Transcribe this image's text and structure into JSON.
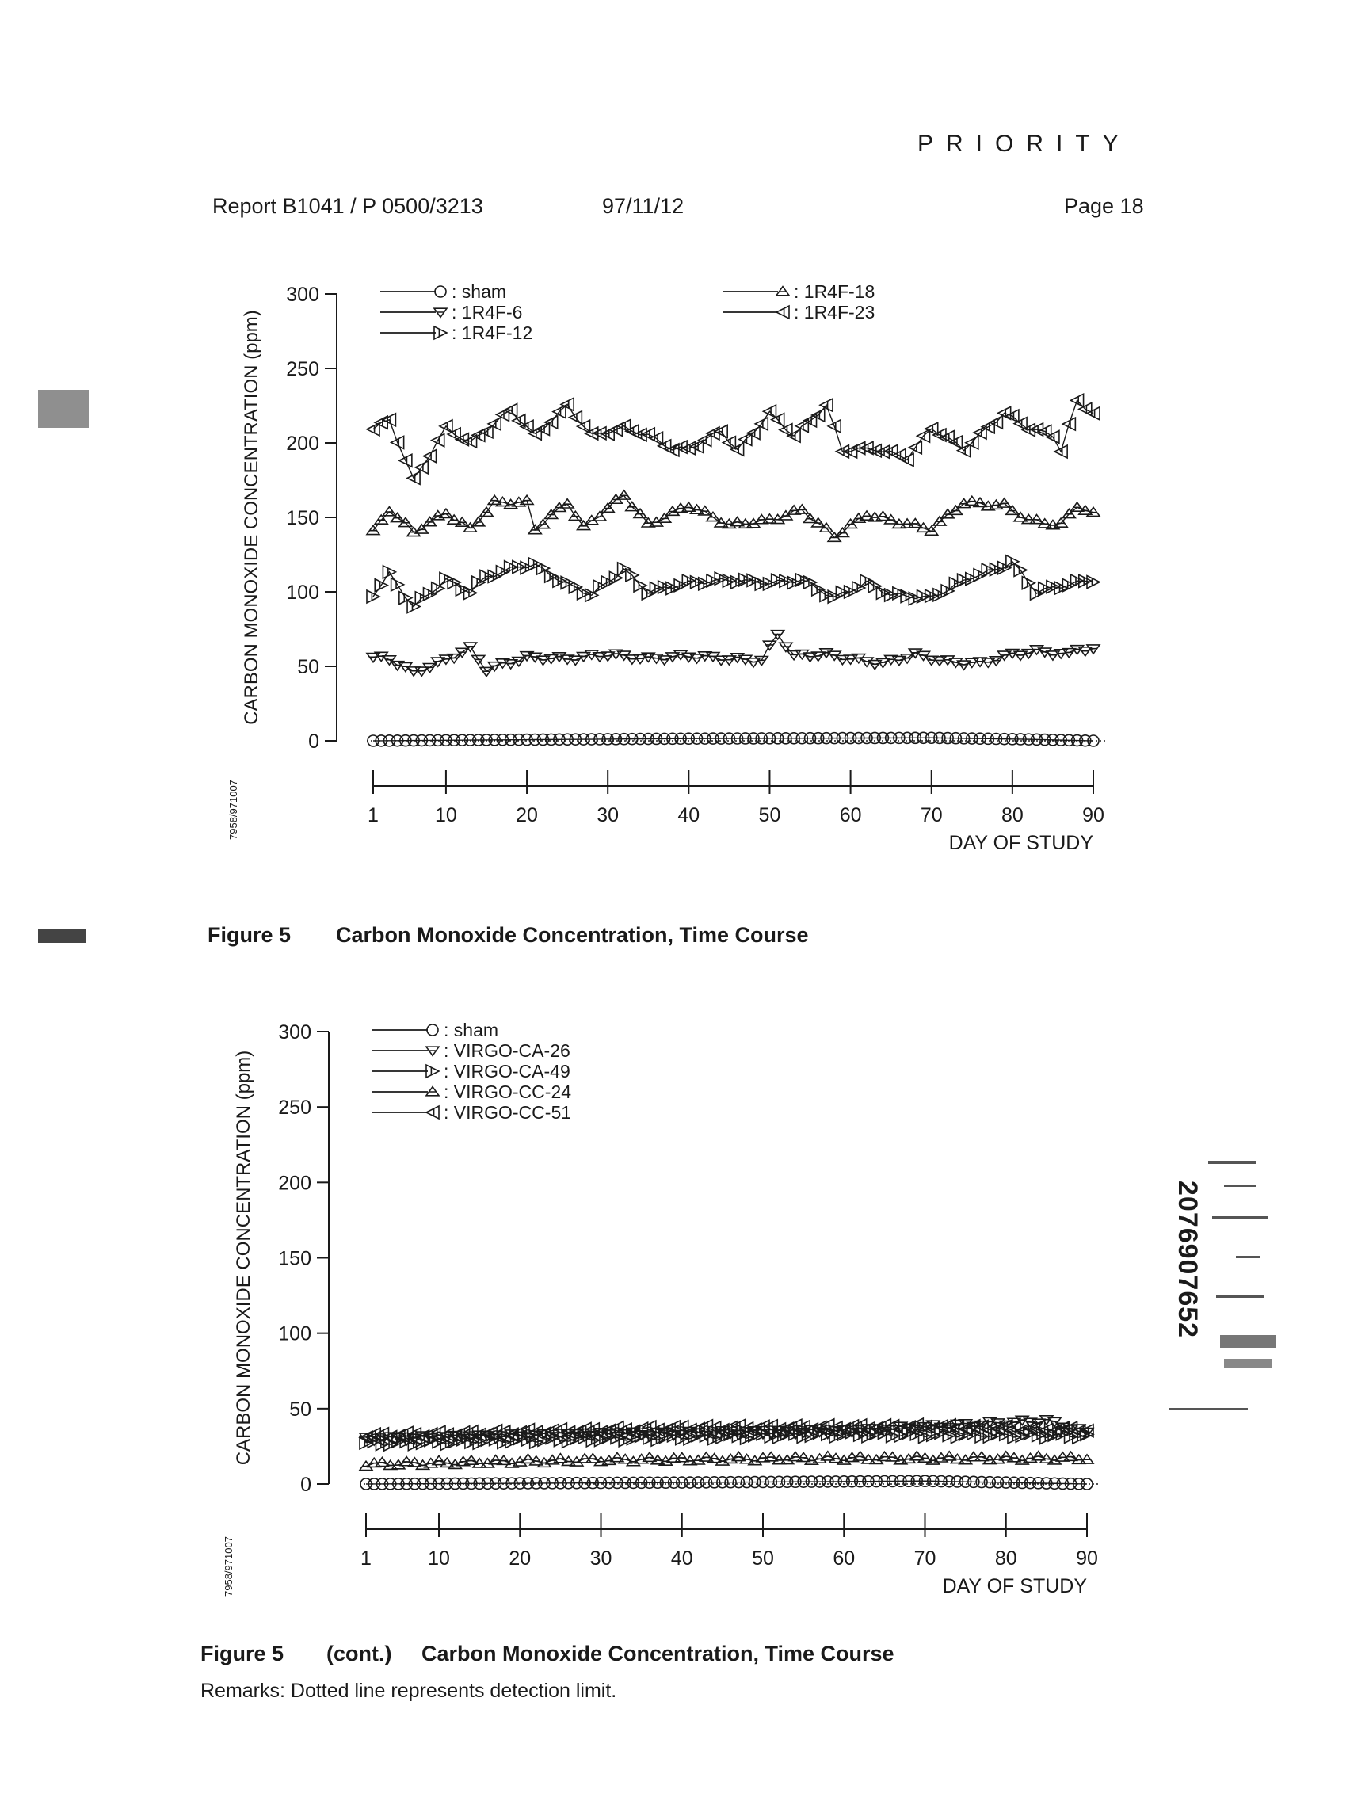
{
  "header": {
    "priority": "PRIORITY",
    "report": "Report B1041 / P 0500/3213",
    "date": "97/11/12",
    "page": "Page 18"
  },
  "figures": [
    {
      "caption_label": "Figure 5",
      "caption_cont": "",
      "caption_title": "Carbon Monoxide Concentration, Time Course",
      "side_id": "7958/971007"
    },
    {
      "caption_label": "Figure 5",
      "caption_cont": "(cont.)",
      "caption_title": "Carbon Monoxide Concentration, Time Course",
      "side_id": "7958/971007"
    }
  ],
  "remarks": "Remarks: Dotted line represents detection limit.",
  "barcode_number": "2076907652",
  "colors": {
    "ink": "#1a1a1a",
    "background": "#ffffff"
  },
  "chart_data": [
    {
      "type": "line",
      "title": "",
      "xlabel": "DAY OF STUDY",
      "ylabel": "CARBON MONOXIDE CONCENTRATION (ppm)",
      "xlim": [
        1,
        90
      ],
      "ylim": [
        0,
        300
      ],
      "x_ticks": [
        1,
        10,
        20,
        30,
        40,
        50,
        60,
        70,
        80,
        90
      ],
      "y_ticks": [
        0,
        50,
        100,
        150,
        200,
        250,
        300
      ],
      "grid": false,
      "legend_position": "top",
      "legend_columns": [
        [
          "sham",
          "1R4F-6",
          "1R4F-12"
        ],
        [
          "1R4F-18",
          "1R4F-23"
        ]
      ],
      "series": [
        {
          "name": "sham",
          "marker": "circle",
          "base": 0,
          "samples": [
            [
              1,
              0
            ],
            [
              13,
              0.5
            ],
            [
              40,
              1.5
            ],
            [
              70,
              2
            ],
            [
              82,
              1
            ],
            [
              90,
              0
            ]
          ]
        },
        {
          "name": "1R4F-6",
          "marker": "triangle-down",
          "base": 55,
          "samples": [
            [
              1,
              56
            ],
            [
              3,
              55
            ],
            [
              6,
              46
            ],
            [
              9,
              52
            ],
            [
              13,
              62
            ],
            [
              15,
              48
            ],
            [
              20,
              56
            ],
            [
              25,
              55
            ],
            [
              30,
              58
            ],
            [
              35,
              55
            ],
            [
              40,
              57
            ],
            [
              45,
              55
            ],
            [
              49,
              54
            ],
            [
              51,
              72
            ],
            [
              53,
              57
            ],
            [
              57,
              58
            ],
            [
              60,
              55
            ],
            [
              64,
              52
            ],
            [
              68,
              58
            ],
            [
              72,
              53
            ],
            [
              76,
              52
            ],
            [
              80,
              58
            ],
            [
              83,
              60
            ],
            [
              87,
              58
            ],
            [
              88,
              62
            ],
            [
              90,
              61
            ]
          ]
        },
        {
          "name": "1R4F-12",
          "marker": "half-right",
          "base": 103,
          "samples": [
            [
              1,
              98
            ],
            [
              3,
              112
            ],
            [
              6,
              90
            ],
            [
              10,
              108
            ],
            [
              13,
              100
            ],
            [
              15,
              110
            ],
            [
              19,
              117
            ],
            [
              21,
              118
            ],
            [
              25,
              105
            ],
            [
              28,
              98
            ],
            [
              32,
              115
            ],
            [
              35,
              100
            ],
            [
              40,
              106
            ],
            [
              45,
              108
            ],
            [
              50,
              106
            ],
            [
              54,
              108
            ],
            [
              58,
              96
            ],
            [
              62,
              106
            ],
            [
              65,
              98
            ],
            [
              70,
              96
            ],
            [
              75,
              110
            ],
            [
              78,
              115
            ],
            [
              80,
              120
            ],
            [
              83,
              100
            ],
            [
              87,
              105
            ],
            [
              90,
              108
            ]
          ]
        },
        {
          "name": "1R4F-18",
          "marker": "half-top",
          "base": 150,
          "samples": [
            [
              1,
              140
            ],
            [
              3,
              155
            ],
            [
              6,
              140
            ],
            [
              10,
              153
            ],
            [
              13,
              142
            ],
            [
              16,
              160
            ],
            [
              20,
              160
            ],
            [
              21,
              142
            ],
            [
              25,
              160
            ],
            [
              27,
              143
            ],
            [
              32,
              165
            ],
            [
              35,
              145
            ],
            [
              40,
              158
            ],
            [
              45,
              145
            ],
            [
              50,
              148
            ],
            [
              54,
              155
            ],
            [
              58,
              137
            ],
            [
              62,
              152
            ],
            [
              65,
              148
            ],
            [
              70,
              142
            ],
            [
              74,
              160
            ],
            [
              79,
              158
            ],
            [
              82,
              148
            ],
            [
              86,
              145
            ],
            [
              88,
              158
            ],
            [
              90,
              152
            ]
          ]
        },
        {
          "name": "1R4F-23",
          "marker": "half-left",
          "base": 205,
          "samples": [
            [
              1,
              210
            ],
            [
              3,
              215
            ],
            [
              6,
              175
            ],
            [
              10,
              210
            ],
            [
              13,
              200
            ],
            [
              18,
              222
            ],
            [
              21,
              205
            ],
            [
              25,
              225
            ],
            [
              28,
              205
            ],
            [
              32,
              210
            ],
            [
              35,
              205
            ],
            [
              38,
              196
            ],
            [
              40,
              196
            ],
            [
              44,
              208
            ],
            [
              46,
              195
            ],
            [
              50,
              220
            ],
            [
              53,
              205
            ],
            [
              57,
              225
            ],
            [
              59,
              195
            ],
            [
              63,
              196
            ],
            [
              67,
              190
            ],
            [
              70,
              210
            ],
            [
              74,
              196
            ],
            [
              79,
              220
            ],
            [
              82,
              210
            ],
            [
              85,
              205
            ],
            [
              86,
              195
            ],
            [
              88,
              228
            ],
            [
              90,
              220
            ]
          ]
        }
      ]
    },
    {
      "type": "line",
      "title": "",
      "xlabel": "DAY OF STUDY",
      "ylabel": "CARBON MONOXIDE CONCENTRATION (ppm)",
      "xlim": [
        1,
        90
      ],
      "ylim": [
        0,
        300
      ],
      "x_ticks": [
        1,
        10,
        20,
        30,
        40,
        50,
        60,
        70,
        80,
        90
      ],
      "y_ticks": [
        0,
        50,
        100,
        150,
        200,
        250,
        300
      ],
      "grid": false,
      "legend_position": "top",
      "legend_columns": [
        [
          "sham",
          "VIRGO-CA-26",
          "VIRGO-CA-49",
          "VIRGO-CC-24",
          "VIRGO-CC-51"
        ]
      ],
      "series": [
        {
          "name": "sham",
          "marker": "circle",
          "base": 0,
          "samples": [
            [
              1,
              0
            ],
            [
              40,
              1
            ],
            [
              70,
              2
            ],
            [
              90,
              0
            ]
          ]
        },
        {
          "name": "VIRGO-CA-26",
          "marker": "triangle-down",
          "base": 32,
          "samples": [
            [
              1,
              30
            ],
            [
              30,
              33
            ],
            [
              60,
              35
            ],
            [
              85,
              42
            ],
            [
              90,
              34
            ]
          ]
        },
        {
          "name": "VIRGO-CA-49",
          "marker": "half-right",
          "base": 30,
          "samples": [
            [
              1,
              27
            ],
            [
              30,
              30
            ],
            [
              60,
              33
            ],
            [
              90,
              32
            ]
          ]
        },
        {
          "name": "VIRGO-CC-24",
          "marker": "half-top",
          "base": 16,
          "samples": [
            [
              1,
              13
            ],
            [
              30,
              16
            ],
            [
              60,
              17
            ],
            [
              90,
              17
            ]
          ]
        },
        {
          "name": "VIRGO-CC-51",
          "marker": "half-left",
          "base": 35,
          "samples": [
            [
              1,
              32
            ],
            [
              40,
              37
            ],
            [
              70,
              38
            ],
            [
              90,
              36
            ]
          ]
        }
      ]
    }
  ]
}
